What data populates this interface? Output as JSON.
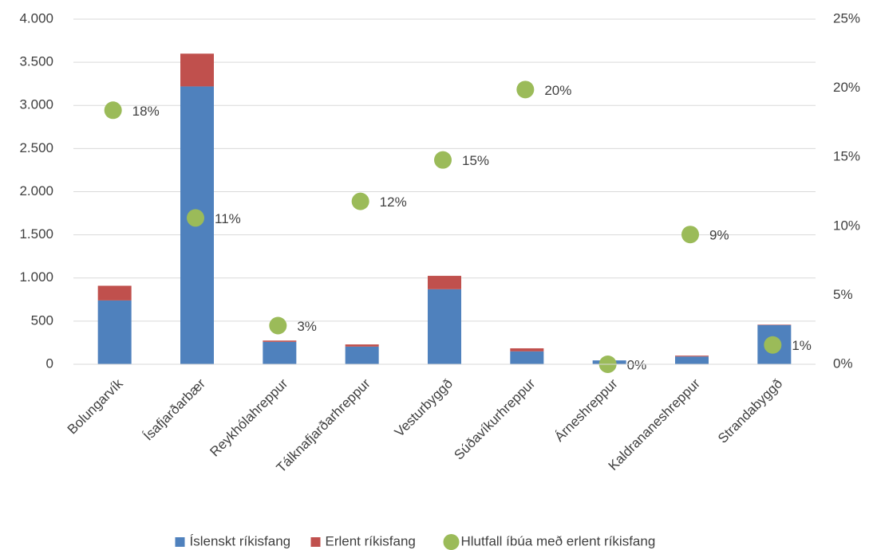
{
  "chart_data": {
    "type": "bar",
    "stacked": true,
    "categories": [
      "Bolungarvík",
      "Ísafjarðarbær",
      "Reykhólahreppur",
      "Tálknafjarðarhreppur",
      "Vesturbyggð",
      "Súðavíkurhreppur",
      "Árneshreppur",
      "Kaldrananeshreppur",
      "Strandabyggð"
    ],
    "series": [
      {
        "name": "Íslenskt ríkisfang",
        "color": "#4f81bd",
        "values": [
          740,
          3220,
          260,
          205,
          870,
          150,
          45,
          90,
          455
        ]
      },
      {
        "name": "Erlent ríkisfang",
        "color": "#c0504d",
        "values": [
          170,
          380,
          15,
          25,
          155,
          35,
          0,
          10,
          5
        ]
      },
      {
        "name": "Hlutfall íbúa með erlent ríkisfang",
        "color": "#9bbb59",
        "type": "scatter",
        "axis": "y2",
        "values": [
          18.4,
          10.6,
          2.8,
          11.8,
          14.8,
          19.9,
          0,
          9.4,
          1.4
        ],
        "value_labels": [
          "18%",
          "11%",
          "3%",
          "12%",
          "15%",
          "20%",
          "0%",
          "9%",
          "1%"
        ]
      }
    ],
    "ylim": [
      0,
      4000
    ],
    "yticks": [
      0,
      500,
      {
        "value": 1000,
        "label": "1.000"
      },
      {
        "value": 1500,
        "label": "1.500"
      },
      {
        "value": 2000,
        "label": "2.000"
      },
      {
        "value": 2500,
        "label": "2.500"
      },
      {
        "value": 3000,
        "label": "3.000"
      },
      {
        "value": 3500,
        "label": "3.500"
      },
      {
        "value": 4000,
        "label": "4.000"
      }
    ],
    "y2lim": [
      0,
      25
    ],
    "y2ticks": [
      {
        "value": 0,
        "label": "0%"
      },
      {
        "value": 5,
        "label": "5%"
      },
      {
        "value": 10,
        "label": "10%"
      },
      {
        "value": 15,
        "label": "15%"
      },
      {
        "value": 20,
        "label": "20%"
      },
      {
        "value": 25,
        "label": "25%"
      }
    ],
    "grid": true,
    "legend": "bottom"
  }
}
